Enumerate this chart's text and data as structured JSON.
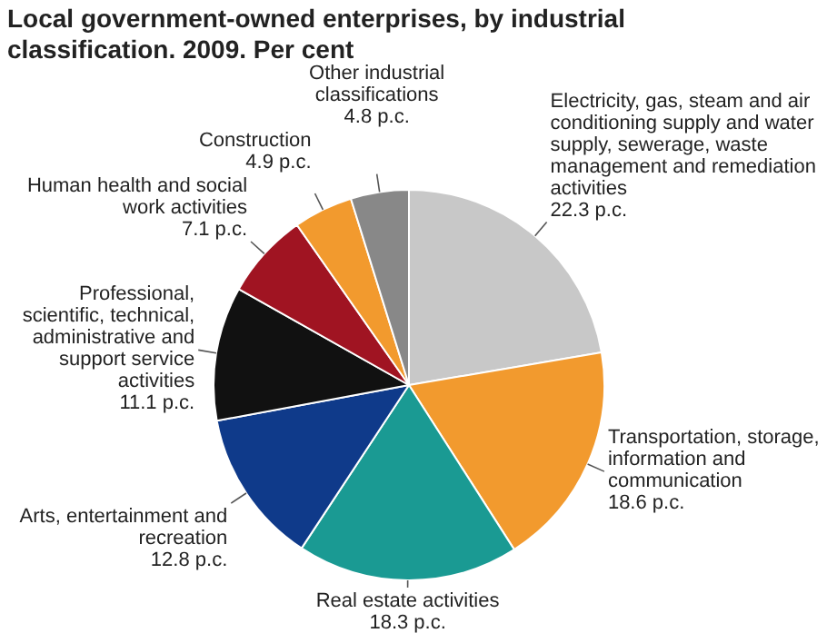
{
  "chart_data": {
    "type": "pie",
    "title": "Local government-owned enterprises, by industrial classification. 2009. Per cent",
    "categories": [
      "Electricity, gas, steam and air conditioning supply and water supply, sewerage, waste management and remediation activities",
      "Transportation, storage, information and communication",
      "Real estate activities",
      "Arts, entertainment and recreation",
      "Professional, scientific, technical, administrative and support service activities",
      "Human health and social work activities",
      "Construction",
      "Other industrial classifications"
    ],
    "values": [
      22.3,
      18.6,
      18.3,
      12.8,
      11.1,
      7.1,
      4.9,
      4.8
    ],
    "value_labels": [
      "22.3 p.c.",
      "18.6 p.c.",
      "18.3 p.c.",
      "12.8 p.c.",
      "11.1 p.c.",
      "7.1 p.c.",
      "4.9 p.c.",
      "4.8 p.c."
    ],
    "colors": [
      "#c8c8c8",
      "#f29a2e",
      "#1a9a93",
      "#0f3a8a",
      "#111111",
      "#a01422",
      "#f29a2e",
      "#888888"
    ],
    "legend": false
  }
}
